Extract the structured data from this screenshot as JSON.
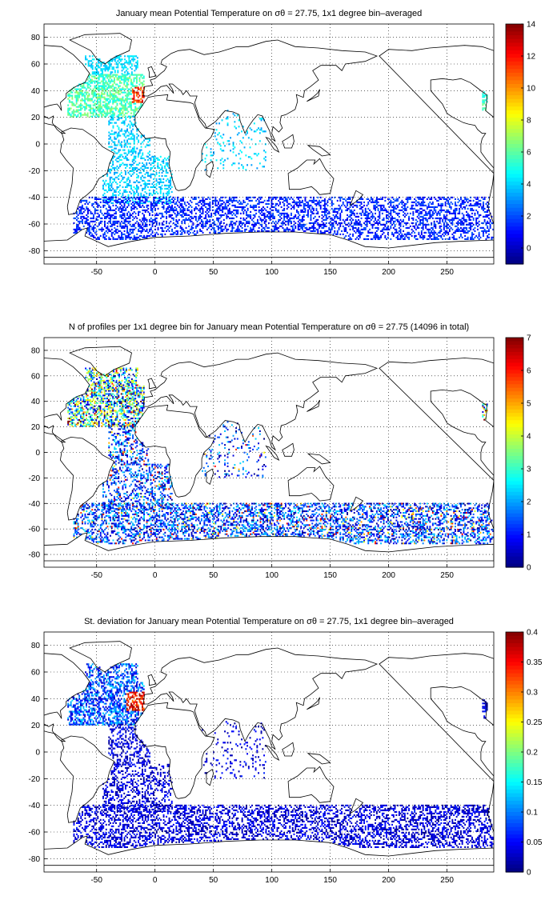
{
  "figure": {
    "background": "#ffffff"
  },
  "chart_data": [
    {
      "type": "heatmap",
      "map": "world-coastline",
      "title": "January mean Potential Temperature on σθ = 27.75, 1x1 degree bin–averaged",
      "xlim": [
        -95,
        290
      ],
      "ylim": [
        -90,
        90
      ],
      "xticks": [
        "-50",
        "0",
        "50",
        "100",
        "150",
        "200",
        "250"
      ],
      "yticks": [
        "80",
        "60",
        "40",
        "20",
        "0",
        "-20",
        "-40",
        "-60",
        "-80"
      ],
      "grid": true,
      "colormap": "jet",
      "clim": [
        -1,
        14
      ],
      "colorbar_ticks": [
        "14",
        "12",
        "10",
        "8",
        "6",
        "4",
        "2",
        "0"
      ]
    },
    {
      "type": "heatmap",
      "map": "world-coastline",
      "title": "N of profiles per 1x1 degree bin for January mean Potential Temperature on σθ = 27.75 (14096 in total)",
      "xlim": [
        -95,
        290
      ],
      "ylim": [
        -90,
        90
      ],
      "xticks": [
        "-50",
        "0",
        "50",
        "100",
        "150",
        "200",
        "250"
      ],
      "yticks": [
        "80",
        "60",
        "40",
        "20",
        "0",
        "-20",
        "-40",
        "-60",
        "-80"
      ],
      "grid": true,
      "colormap": "jet",
      "clim": [
        0,
        7
      ],
      "colorbar_ticks": [
        "7",
        "6",
        "5",
        "4",
        "3",
        "2",
        "1",
        "0"
      ]
    },
    {
      "type": "heatmap",
      "map": "world-coastline",
      "title": "St. deviation for January mean Potential Temperature on σθ = 27.75, 1x1 degree bin–averaged",
      "xlim": [
        -95,
        290
      ],
      "ylim": [
        -90,
        90
      ],
      "xticks": [
        "-50",
        "0",
        "50",
        "100",
        "150",
        "200",
        "250"
      ],
      "yticks": [
        "80",
        "60",
        "40",
        "20",
        "0",
        "-20",
        "-40",
        "-60",
        "-80"
      ],
      "grid": true,
      "colormap": "jet",
      "clim": [
        0,
        0.4
      ],
      "colorbar_ticks": [
        "0.4",
        "0.35",
        "0.3",
        "0.25",
        "0.2",
        "0.15",
        "0.1",
        "0.05",
        "0"
      ]
    }
  ]
}
